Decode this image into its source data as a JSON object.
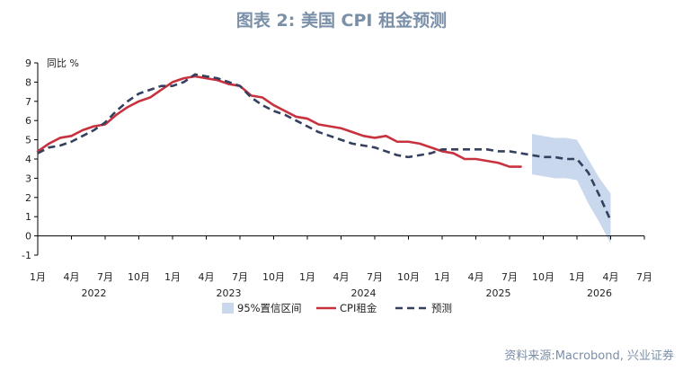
{
  "title": "图表 2:  美国 CPI 租金预测",
  "source": "资料来源:Macrobond, 兴业证券",
  "chart_data": {
    "type": "line",
    "ylabel": "同比 %",
    "ylim": [
      -1,
      9
    ],
    "yticks": [
      -1,
      0,
      1,
      2,
      3,
      4,
      5,
      6,
      7,
      8,
      9
    ],
    "xlim": [
      "2022-01",
      "2026-07"
    ],
    "month_ticks": [
      "1月",
      "4月",
      "7月",
      "10月",
      "1月",
      "4月",
      "7月",
      "10月",
      "1月",
      "4月",
      "7月",
      "10月",
      "1月",
      "4月",
      "7月",
      "10月",
      "1月",
      "4月",
      "7月"
    ],
    "year_labels": [
      {
        "label": "2022",
        "at": "2022-06"
      },
      {
        "label": "2023",
        "at": "2023-06"
      },
      {
        "label": "2024",
        "at": "2024-06"
      },
      {
        "label": "2025",
        "at": "2025-06"
      },
      {
        "label": "2026",
        "at": "2026-03"
      }
    ],
    "series": [
      {
        "name": "CPI租金",
        "color": "#c8323f",
        "style": "solid",
        "points": [
          [
            "2022-01",
            4.4
          ],
          [
            "2022-02",
            4.8
          ],
          [
            "2022-03",
            5.1
          ],
          [
            "2022-04",
            5.2
          ],
          [
            "2022-05",
            5.5
          ],
          [
            "2022-06",
            5.7
          ],
          [
            "2022-07",
            5.8
          ],
          [
            "2022-08",
            6.3
          ],
          [
            "2022-09",
            6.7
          ],
          [
            "2022-10",
            7.0
          ],
          [
            "2022-11",
            7.2
          ],
          [
            "2022-12",
            7.6
          ],
          [
            "2023-01",
            8.0
          ],
          [
            "2023-02",
            8.2
          ],
          [
            "2023-03",
            8.3
          ],
          [
            "2023-04",
            8.2
          ],
          [
            "2023-05",
            8.1
          ],
          [
            "2023-06",
            7.9
          ],
          [
            "2023-07",
            7.8
          ],
          [
            "2023-08",
            7.3
          ],
          [
            "2023-09",
            7.2
          ],
          [
            "2023-10",
            6.8
          ],
          [
            "2023-11",
            6.5
          ],
          [
            "2023-12",
            6.2
          ],
          [
            "2024-01",
            6.1
          ],
          [
            "2024-02",
            5.8
          ],
          [
            "2024-03",
            5.7
          ],
          [
            "2024-04",
            5.6
          ],
          [
            "2024-05",
            5.4
          ],
          [
            "2024-06",
            5.2
          ],
          [
            "2024-07",
            5.1
          ],
          [
            "2024-08",
            5.2
          ],
          [
            "2024-09",
            4.9
          ],
          [
            "2024-10",
            4.9
          ],
          [
            "2024-11",
            4.8
          ],
          [
            "2024-12",
            4.6
          ],
          [
            "2025-01",
            4.4
          ],
          [
            "2025-02",
            4.3
          ],
          [
            "2025-03",
            4.0
          ],
          [
            "2025-04",
            4.0
          ],
          [
            "2025-05",
            3.9
          ],
          [
            "2025-06",
            3.8
          ],
          [
            "2025-07",
            3.6
          ],
          [
            "2025-08",
            3.6
          ]
        ]
      },
      {
        "name": "预测",
        "color": "#34405e",
        "style": "dashed",
        "points": [
          [
            "2022-01",
            4.3
          ],
          [
            "2022-02",
            4.6
          ],
          [
            "2022-03",
            4.7
          ],
          [
            "2022-04",
            4.9
          ],
          [
            "2022-05",
            5.2
          ],
          [
            "2022-06",
            5.5
          ],
          [
            "2022-07",
            5.9
          ],
          [
            "2022-08",
            6.5
          ],
          [
            "2022-09",
            7.0
          ],
          [
            "2022-10",
            7.4
          ],
          [
            "2022-11",
            7.6
          ],
          [
            "2022-12",
            7.8
          ],
          [
            "2023-01",
            7.8
          ],
          [
            "2023-02",
            8.0
          ],
          [
            "2023-03",
            8.4
          ],
          [
            "2023-04",
            8.3
          ],
          [
            "2023-05",
            8.2
          ],
          [
            "2023-06",
            8.0
          ],
          [
            "2023-07",
            7.8
          ],
          [
            "2023-08",
            7.2
          ],
          [
            "2023-09",
            6.8
          ],
          [
            "2023-10",
            6.5
          ],
          [
            "2023-11",
            6.3
          ],
          [
            "2023-12",
            6.0
          ],
          [
            "2024-01",
            5.7
          ],
          [
            "2024-02",
            5.4
          ],
          [
            "2024-03",
            5.2
          ],
          [
            "2024-04",
            5.0
          ],
          [
            "2024-05",
            4.8
          ],
          [
            "2024-06",
            4.7
          ],
          [
            "2024-07",
            4.6
          ],
          [
            "2024-08",
            4.4
          ],
          [
            "2024-09",
            4.2
          ],
          [
            "2024-10",
            4.1
          ],
          [
            "2024-11",
            4.2
          ],
          [
            "2024-12",
            4.3
          ],
          [
            "2025-01",
            4.5
          ],
          [
            "2025-02",
            4.5
          ],
          [
            "2025-03",
            4.5
          ],
          [
            "2025-04",
            4.5
          ],
          [
            "2025-05",
            4.5
          ],
          [
            "2025-06",
            4.4
          ],
          [
            "2025-07",
            4.4
          ],
          [
            "2025-08",
            4.3
          ],
          [
            "2025-09",
            4.2
          ],
          [
            "2025-10",
            4.1
          ],
          [
            "2025-11",
            4.1
          ],
          [
            "2025-12",
            4.0
          ],
          [
            "2026-01",
            4.0
          ],
          [
            "2026-02",
            3.3
          ],
          [
            "2026-03",
            2.1
          ],
          [
            "2026-04",
            0.8
          ]
        ]
      }
    ],
    "band": {
      "name": "95%置信区间",
      "color": "#c9d8ec",
      "points": [
        [
          "2025-09",
          3.2,
          5.3
        ],
        [
          "2025-10",
          3.1,
          5.2
        ],
        [
          "2025-11",
          3.0,
          5.1
        ],
        [
          "2025-12",
          3.0,
          5.1
        ],
        [
          "2026-01",
          2.9,
          5.0
        ],
        [
          "2026-02",
          1.7,
          4.0
        ],
        [
          "2026-03",
          0.7,
          3.0
        ],
        [
          "2026-04",
          -0.4,
          2.2
        ]
      ]
    }
  }
}
